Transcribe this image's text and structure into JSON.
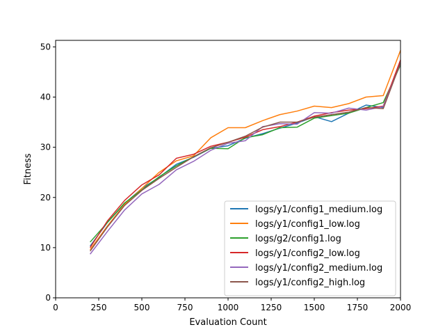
{
  "chart_data": {
    "type": "line",
    "title": "",
    "xlabel": "Evaluation Count",
    "ylabel": "Fitness",
    "xlim": [
      0,
      2000
    ],
    "ylim": [
      0,
      51.3
    ],
    "xticks": [
      0,
      250,
      500,
      750,
      1000,
      1250,
      1500,
      1750,
      2000
    ],
    "yticks": [
      0,
      10,
      20,
      30,
      40,
      50
    ],
    "grid": false,
    "legend_position": "lower-right",
    "x": [
      200,
      300,
      400,
      500,
      600,
      700,
      800,
      900,
      1000,
      1100,
      1200,
      1300,
      1400,
      1500,
      1600,
      1700,
      1800,
      1900,
      2000
    ],
    "series": [
      {
        "name": "logs/y1/config1_medium.log",
        "color": "#1f77b4",
        "values": [
          10.3,
          15.0,
          18.8,
          21.8,
          24.0,
          26.6,
          28.0,
          29.8,
          30.3,
          31.8,
          32.7,
          33.8,
          34.8,
          36.1,
          35.1,
          36.8,
          38.4,
          37.9,
          47.1
        ]
      },
      {
        "name": "logs/y1/config1_low.log",
        "color": "#ff7f0e",
        "values": [
          9.6,
          14.3,
          18.6,
          21.8,
          25.0,
          27.3,
          28.3,
          31.9,
          33.9,
          33.9,
          35.3,
          36.5,
          37.2,
          38.2,
          37.9,
          38.7,
          40.0,
          40.3,
          49.3
        ]
      },
      {
        "name": "logs/g2/config1.log",
        "color": "#2ca02c",
        "values": [
          11.1,
          15.0,
          18.9,
          21.5,
          24.1,
          26.3,
          28.1,
          29.8,
          29.7,
          31.9,
          32.5,
          33.9,
          34.0,
          35.8,
          36.3,
          36.8,
          37.9,
          38.9,
          46.4
        ]
      },
      {
        "name": "logs/y1/config2_low.log",
        "color": "#d62728",
        "values": [
          10.0,
          15.3,
          19.4,
          22.5,
          24.5,
          27.8,
          28.6,
          30.2,
          31.0,
          32.0,
          33.5,
          34.1,
          35.0,
          36.2,
          36.9,
          37.4,
          37.7,
          38.2,
          47.4
        ]
      },
      {
        "name": "logs/y1/config2_medium.log",
        "color": "#9467bd",
        "values": [
          8.7,
          13.2,
          17.5,
          20.7,
          22.6,
          25.5,
          27.2,
          29.4,
          30.8,
          31.3,
          34.1,
          34.7,
          34.6,
          36.9,
          36.8,
          37.8,
          37.4,
          38.1,
          46.7
        ]
      },
      {
        "name": "logs/y1/config2_high.log",
        "color": "#8c564b",
        "values": [
          9.3,
          14.1,
          18.4,
          21.4,
          23.8,
          26.0,
          28.1,
          29.9,
          31.0,
          32.2,
          34.0,
          35.0,
          35.0,
          36.0,
          36.5,
          37.0,
          37.9,
          37.7,
          46.8
        ]
      }
    ]
  }
}
